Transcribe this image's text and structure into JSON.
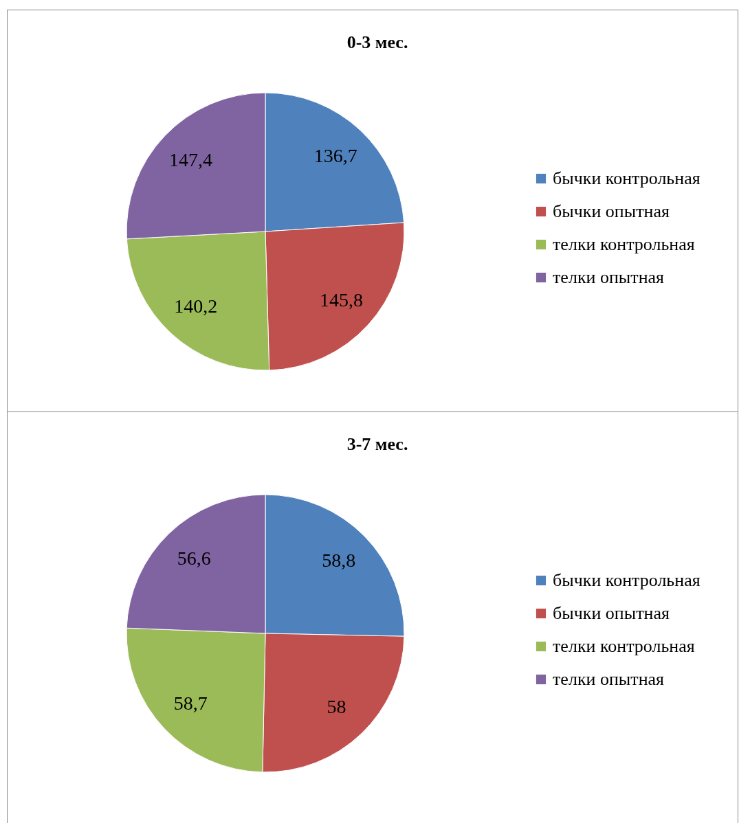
{
  "chart_data": [
    {
      "type": "pie",
      "title": "0-3 мес.",
      "categories": [
        "бычки контрольная",
        "бычки опытная",
        "телки контрольная",
        "телки опытная"
      ],
      "values": [
        136.7,
        145.8,
        140.2,
        147.4
      ],
      "value_labels": [
        "136,7",
        "145,8",
        "140,2",
        "147,4"
      ],
      "colors": [
        "#4f81bd",
        "#c0504d",
        "#9bbb59",
        "#8064a2"
      ],
      "legend": "right"
    },
    {
      "type": "pie",
      "title": "3-7 мес.",
      "categories": [
        "бычки контрольная",
        "бычки опытная",
        "телки контрольная",
        "телки опытная"
      ],
      "values": [
        58.8,
        58,
        58.7,
        56.6
      ],
      "value_labels": [
        "58,8",
        "58",
        "58,7",
        "56,6"
      ],
      "colors": [
        "#4f81bd",
        "#c0504d",
        "#9bbb59",
        "#8064a2"
      ],
      "legend": "right"
    }
  ]
}
